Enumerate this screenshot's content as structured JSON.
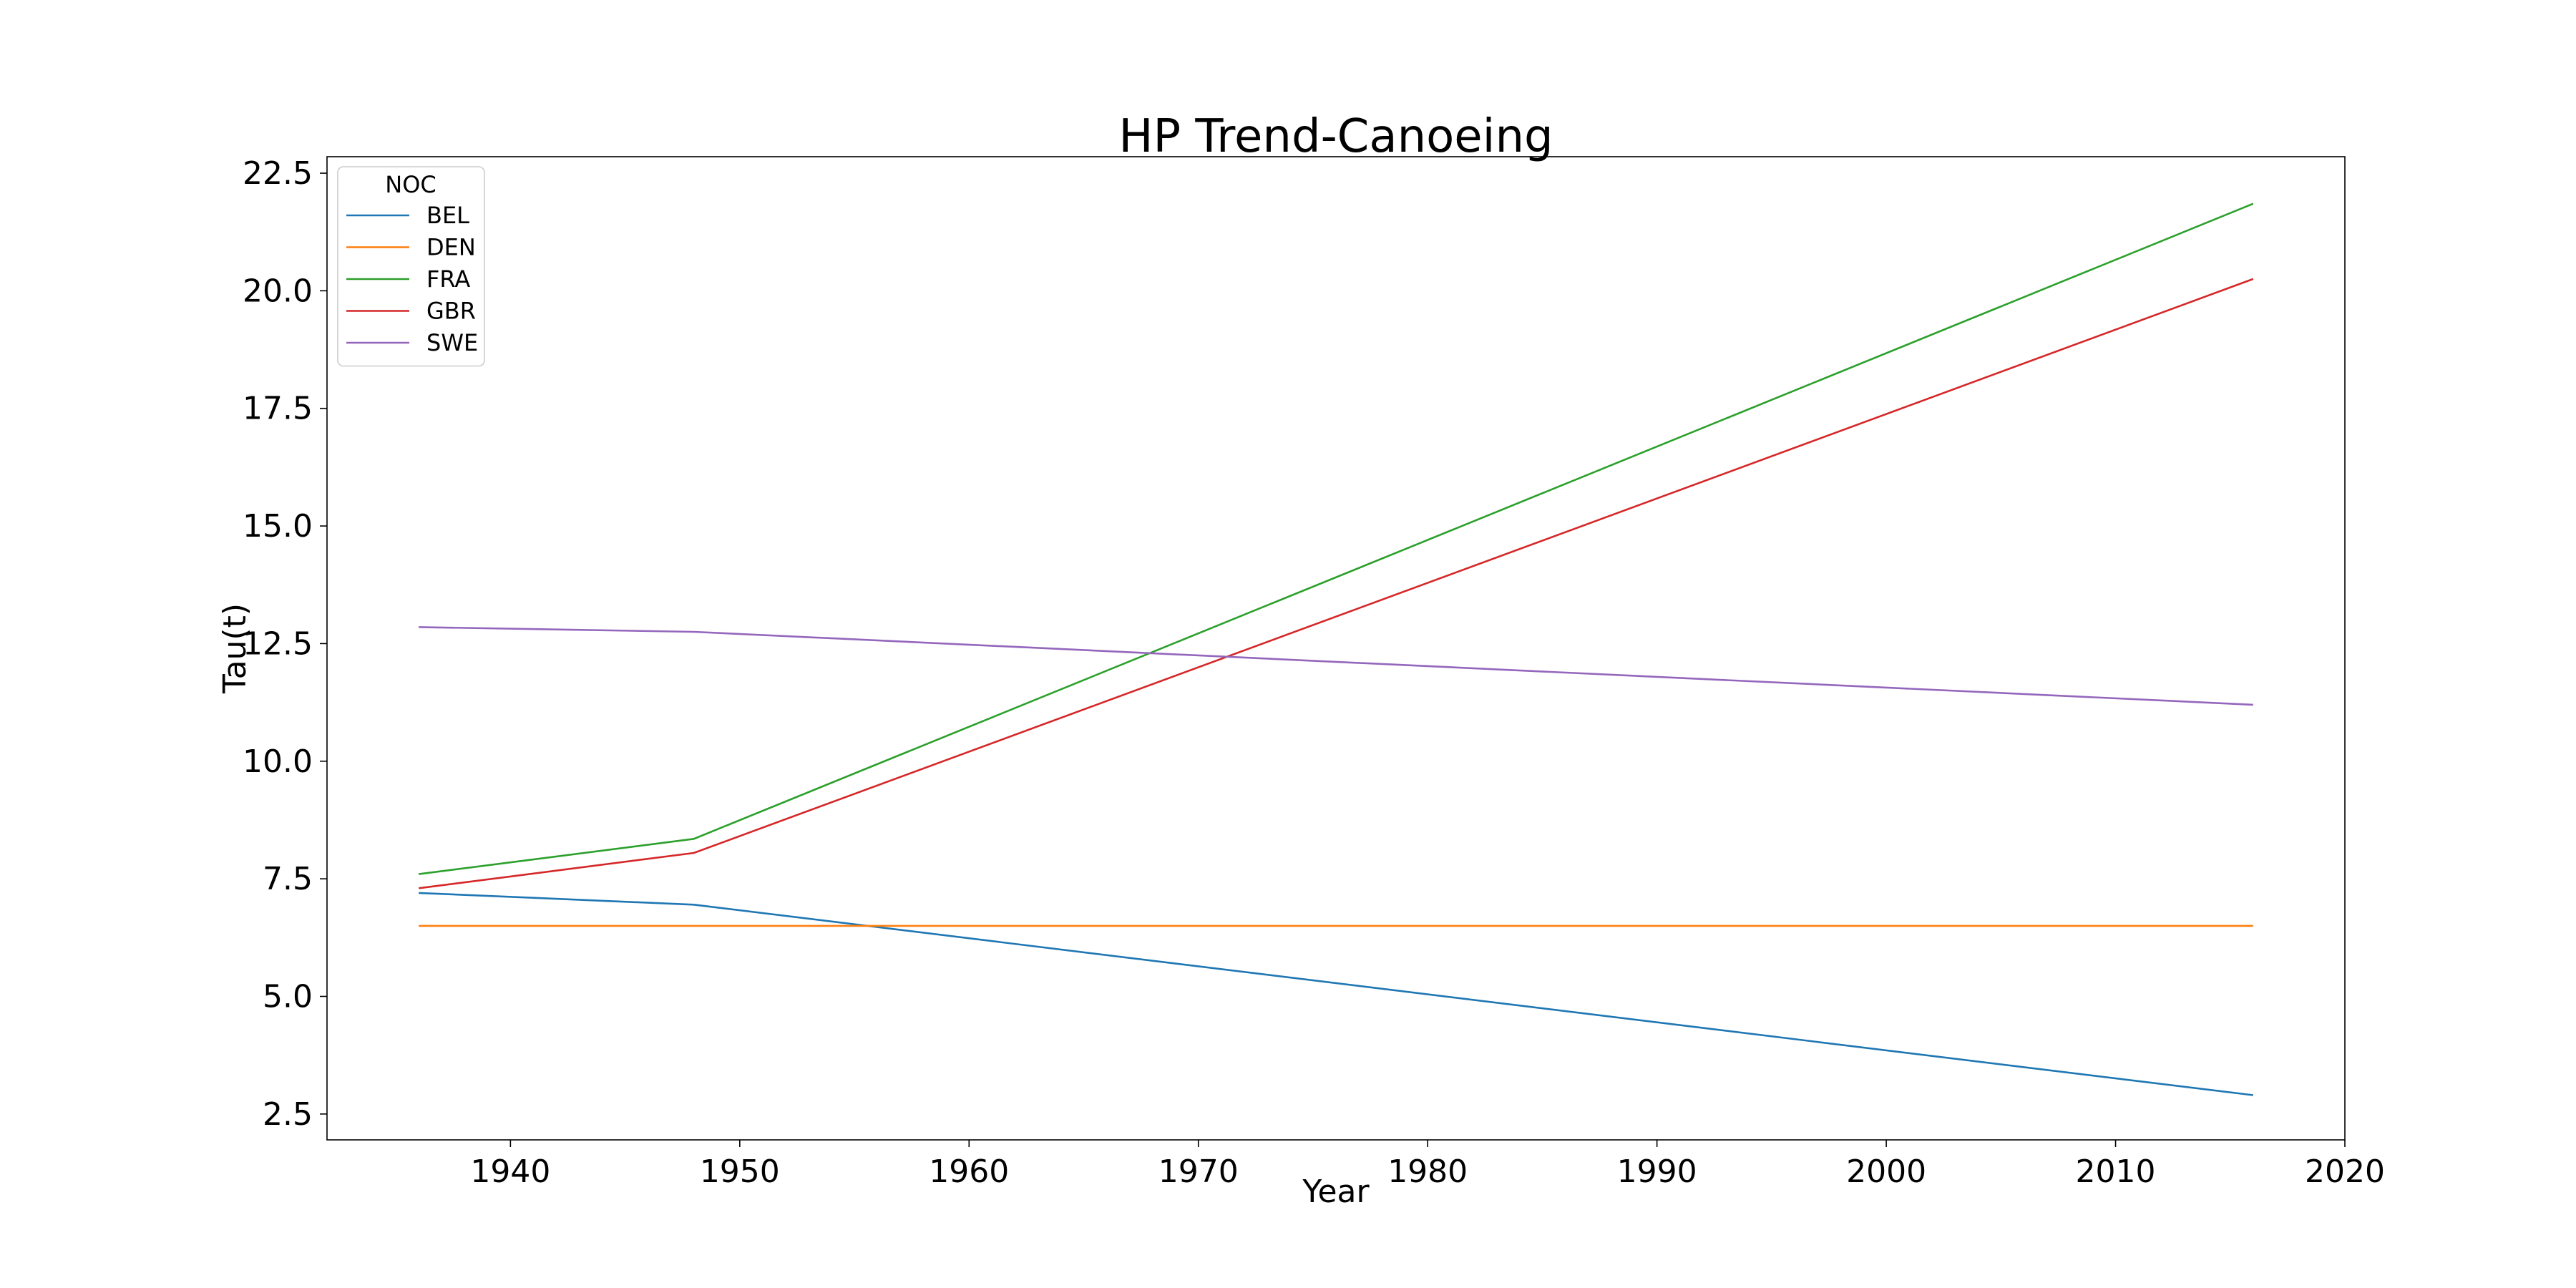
{
  "chart_data": {
    "type": "line",
    "title": "HP Trend-Canoeing",
    "xlabel": "Year",
    "ylabel": "Tau(t)",
    "xlim": [
      1932,
      2020
    ],
    "ylim": [
      1.95,
      22.85
    ],
    "xticks": [
      1940,
      1950,
      1960,
      1970,
      1980,
      1990,
      2000,
      2010,
      2020
    ],
    "yticks": [
      2.5,
      5.0,
      7.5,
      10.0,
      12.5,
      15.0,
      17.5,
      20.0,
      22.5
    ],
    "grid": false,
    "legend": {
      "title": "NOC",
      "placement": "top-left"
    },
    "series": [
      {
        "name": "BEL",
        "color": "#1f77b4",
        "x": [
          1936,
          1948,
          2016
        ],
        "y": [
          7.2,
          6.95,
          2.9
        ]
      },
      {
        "name": "DEN",
        "color": "#ff7f0e",
        "x": [
          1936,
          1948,
          2016
        ],
        "y": [
          6.5,
          6.5,
          6.5
        ]
      },
      {
        "name": "FRA",
        "color": "#2ca02c",
        "x": [
          1936,
          1948,
          2016
        ],
        "y": [
          7.6,
          8.35,
          21.85
        ]
      },
      {
        "name": "GBR",
        "color": "#d62728",
        "x": [
          1936,
          1948,
          2016
        ],
        "y": [
          7.3,
          8.05,
          20.25
        ]
      },
      {
        "name": "SWE",
        "color": "#9467bd",
        "x": [
          1936,
          1948,
          2016
        ],
        "y": [
          12.85,
          12.75,
          11.2
        ]
      }
    ]
  }
}
